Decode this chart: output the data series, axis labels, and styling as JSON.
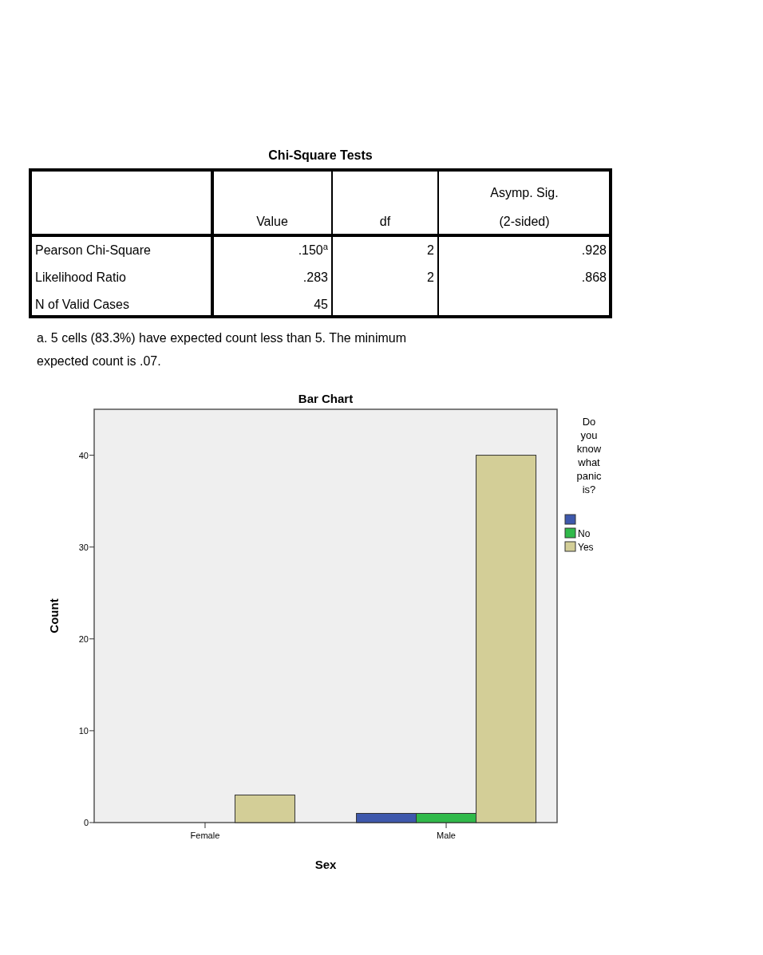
{
  "chart_data": [
    {
      "type": "other",
      "title": "Chi-Square Tests",
      "categories": [
        null,
        "Value",
        "df",
        "Asymp. Sig. (2-sided)"
      ],
      "y_categories": [
        "Pearson Chi-Square",
        "Likelihood Ratio",
        "N of Valid Cases"
      ],
      "cell_labels": [
        [
          ".150$^{a}$",
          "2",
          ".928"
        ],
        [
          ".283",
          "2",
          ".868"
        ],
        [
          "45",
          null,
          null
        ]
      ],
      "annotations": [
        "a. 5 cells (83.3%) have expected count less than 5. The minimum expected count is .07."
      ]
    },
    {
      "type": "bar",
      "title": "Bar Chart",
      "xlabel": "Sex",
      "ylabel": "Count",
      "legend_title": "Do you know what panic is?",
      "categories": [
        "Female",
        "Male"
      ],
      "series": [
        {
          "color": "#3e58ac",
          "values": [
            0,
            1
          ]
        },
        {
          "name": "No",
          "color": "#30b94a",
          "values": [
            0,
            1
          ]
        },
        {
          "name": "Yes",
          "color": "#d3ce97",
          "values": [
            3,
            40
          ]
        }
      ],
      "ylim": [
        0,
        45
      ],
      "yticks": [
        0,
        10,
        20,
        30,
        40
      ],
      "legend": "right",
      "grid": false
    }
  ]
}
